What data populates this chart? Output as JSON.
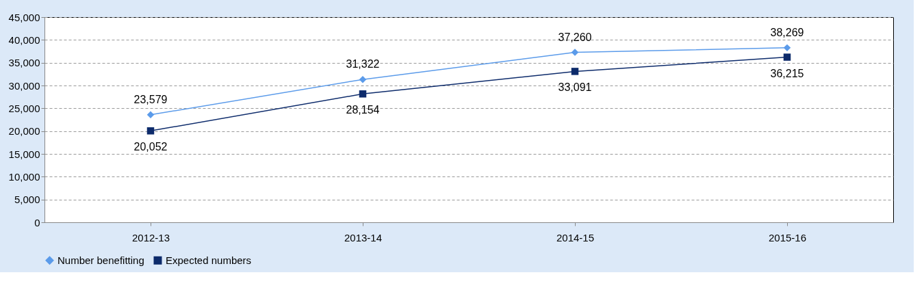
{
  "chart_data": {
    "type": "line",
    "categories": [
      "2012-13",
      "2013-14",
      "2014-15",
      "2015-16"
    ],
    "series": [
      {
        "name": "Number benefitting",
        "color": "#5b9bea",
        "marker": "diamond",
        "values": [
          23579,
          31322,
          37260,
          38269
        ],
        "value_labels": [
          "23,579",
          "31,322",
          "37,260",
          "38,269"
        ]
      },
      {
        "name": "Expected numbers",
        "color": "#0d2b6b",
        "marker": "square",
        "values": [
          20052,
          28154,
          33091,
          36215
        ],
        "value_labels": [
          "20,052",
          "28,154",
          "33,091",
          "36,215"
        ]
      }
    ],
    "ylim": [
      0,
      45000
    ],
    "yticks": [
      0,
      {
        "value": 5000,
        "label": "5,000"
      },
      {
        "value": 10000,
        "label": "10,000"
      },
      {
        "value": 15000,
        "label": "15,000"
      },
      {
        "value": 20000,
        "label": "20,000"
      },
      {
        "value": 25000,
        "label": "25,000"
      },
      {
        "value": 30000,
        "label": "30,000"
      },
      {
        "value": 35000,
        "label": "35,000"
      },
      {
        "value": 40000,
        "label": "40,000"
      },
      {
        "value": 45000,
        "label": "45,000"
      }
    ],
    "grid": "y",
    "legend": "bottom",
    "line_style": "solid"
  }
}
